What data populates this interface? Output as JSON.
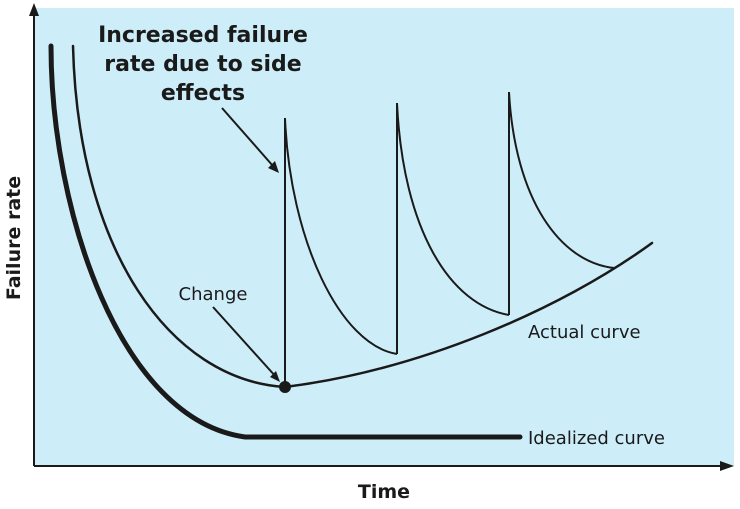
{
  "colors": {
    "plot_background": "#cdeef9",
    "ink": "#1a1a1a"
  },
  "labels": {
    "annotation_lines": [
      "Increased failure",
      "rate due to side",
      "effects"
    ],
    "change": "Change",
    "actual_curve": "Actual curve",
    "idealized_curve": "Idealized curve",
    "x_axis": "Time",
    "y_axis": "Failure rate"
  }
}
